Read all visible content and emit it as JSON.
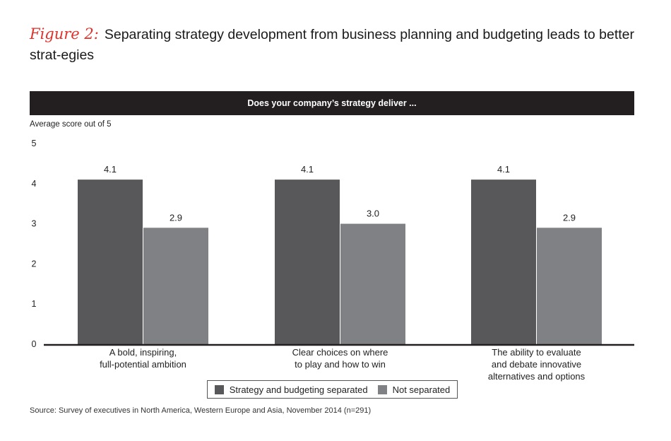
{
  "figure": {
    "label": "Figure 2:",
    "title": "Separating strategy development from business planning and budgeting leads to better strat-egies"
  },
  "banner": "Does your company’s strategy deliver ...",
  "source": "Source: Survey of executives in North America, Western Europe and Asia, November 2014 (n=291)",
  "chart_data": {
    "type": "bar",
    "title": "Does your company’s strategy deliver ...",
    "ylabel": "Average score out of 5",
    "xlabel": "",
    "ylim": [
      0,
      5
    ],
    "yticks": [
      "0",
      "1",
      "2",
      "3",
      "4",
      "5"
    ],
    "categories": [
      [
        "A bold, inspiring,",
        "full-potential ambition"
      ],
      [
        "Clear choices on where",
        "to play and how to win"
      ],
      [
        "The ability to evaluate",
        "and debate innovative",
        "alternatives and options"
      ]
    ],
    "series": [
      {
        "name": "Strategy and budgeting separated",
        "color": "#58585a",
        "values": [
          4.1,
          4.1,
          4.1
        ],
        "labels": [
          "4.1",
          "4.1",
          "4.1"
        ]
      },
      {
        "name": "Not separated",
        "color": "#808184",
        "values": [
          2.9,
          3.0,
          2.9
        ],
        "labels": [
          "2.9",
          "3.0",
          "2.9"
        ]
      }
    ],
    "legend": "bottom-center",
    "grid": false
  }
}
